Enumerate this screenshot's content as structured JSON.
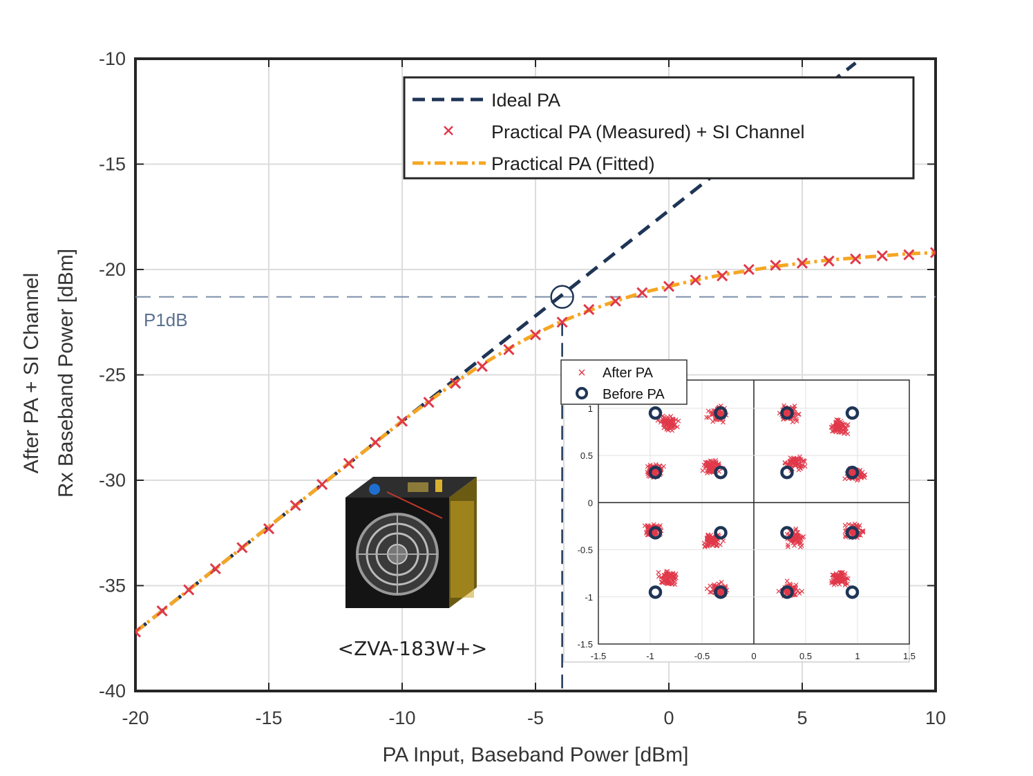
{
  "chart_data": [
    {
      "type": "line",
      "xlabel": "PA Input, Baseband Power [dBm]",
      "ylabel": [
        "After PA + SI Channel",
        "Rx Baseband Power [dBm]"
      ],
      "xlim": [
        -20,
        10
      ],
      "ylim": [
        -40,
        -10
      ],
      "xticks": [
        -20,
        -15,
        -10,
        -5,
        0,
        5,
        10
      ],
      "yticks": [
        -10,
        -15,
        -20,
        -25,
        -30,
        -35,
        -40
      ],
      "grid": true,
      "legend_position": "top-right",
      "series": [
        {
          "name": "Ideal PA",
          "style": "dashed",
          "color": "#1f3556",
          "x": [
            -20,
            7
          ],
          "y": [
            -37.2,
            -10.2
          ]
        },
        {
          "name": "Practical PA (Measured) + SI Channel",
          "style": "markers-x",
          "color": "#e0394a",
          "x": [
            -20,
            -19,
            -18,
            -17,
            -16,
            -15,
            -14,
            -13,
            -12,
            -11,
            -10,
            -9,
            -8,
            -7,
            -6,
            -5,
            -4,
            -3,
            -2,
            -1,
            0,
            1,
            2,
            3,
            4,
            5,
            6,
            7,
            8,
            9,
            10
          ],
          "y": [
            -37.2,
            -36.2,
            -35.2,
            -34.2,
            -33.2,
            -32.3,
            -31.2,
            -30.2,
            -29.2,
            -28.2,
            -27.2,
            -26.3,
            -25.4,
            -24.6,
            -23.8,
            -23.1,
            -22.5,
            -21.9,
            -21.5,
            -21.1,
            -20.8,
            -20.5,
            -20.3,
            -20.0,
            -19.8,
            -19.7,
            -19.6,
            -19.5,
            -19.35,
            -19.3,
            -19.2
          ]
        },
        {
          "name": "Practical PA (Fitted)",
          "style": "dashdot",
          "color": "#f5a623",
          "x": [
            -20,
            -19,
            -18,
            -17,
            -16,
            -15,
            -14,
            -13,
            -12,
            -11,
            -10,
            -9,
            -8,
            -7,
            -6,
            -5,
            -4,
            -3,
            -2,
            -1,
            0,
            1,
            2,
            3,
            4,
            5,
            6,
            7,
            8,
            9,
            10
          ],
          "y": [
            -37.2,
            -36.2,
            -35.2,
            -34.2,
            -33.2,
            -32.2,
            -31.2,
            -30.2,
            -29.2,
            -28.2,
            -27.2,
            -26.25,
            -25.35,
            -24.5,
            -23.75,
            -23.05,
            -22.45,
            -21.95,
            -21.5,
            -21.1,
            -20.8,
            -20.5,
            -20.25,
            -20.05,
            -19.85,
            -19.7,
            -19.55,
            -19.45,
            -19.35,
            -19.25,
            -19.2
          ]
        }
      ],
      "annotations": {
        "p1db_label": "P1dB",
        "p1db_x": -4.0,
        "p1db_y": -21.3
      }
    },
    {
      "type": "scatter",
      "title": "",
      "xlim": [
        -1.5,
        1.5
      ],
      "ylim": [
        -1.5,
        1.3
      ],
      "xticks": [
        -1.5,
        -1,
        -0.5,
        0,
        0.5,
        1,
        1.5
      ],
      "yticks": [
        1,
        0.5,
        0,
        -0.5,
        -1,
        -1.5
      ],
      "grid": true,
      "legend_position": "top-left",
      "series": [
        {
          "name": "After PA",
          "marker": "x",
          "color": "#e0394a",
          "clusters": [
            {
              "x": -0.82,
              "y": 0.84
            },
            {
              "x": -0.35,
              "y": 0.94
            },
            {
              "x": 0.35,
              "y": 0.94
            },
            {
              "x": 0.82,
              "y": 0.8
            },
            {
              "x": -0.97,
              "y": 0.33
            },
            {
              "x": -0.4,
              "y": 0.38
            },
            {
              "x": 0.4,
              "y": 0.42
            },
            {
              "x": 0.98,
              "y": 0.3
            },
            {
              "x": -0.97,
              "y": -0.3
            },
            {
              "x": -0.4,
              "y": -0.4
            },
            {
              "x": 0.4,
              "y": -0.38
            },
            {
              "x": 0.97,
              "y": -0.3
            },
            {
              "x": -0.82,
              "y": -0.8
            },
            {
              "x": -0.35,
              "y": -0.93
            },
            {
              "x": 0.35,
              "y": -0.93
            },
            {
              "x": 0.82,
              "y": -0.8
            }
          ]
        },
        {
          "name": "Before PA",
          "marker": "o",
          "color": "#1f3556",
          "x": [
            -0.95,
            -0.32,
            0.32,
            0.95,
            -0.95,
            -0.32,
            0.32,
            0.95,
            -0.95,
            -0.32,
            0.32,
            0.95,
            -0.95,
            -0.32,
            0.32,
            0.95
          ],
          "y": [
            0.95,
            0.95,
            0.95,
            0.95,
            0.32,
            0.32,
            0.32,
            0.32,
            -0.32,
            -0.32,
            -0.32,
            -0.32,
            -0.95,
            -0.95,
            -0.95,
            -0.95
          ]
        }
      ]
    }
  ],
  "device_caption": "<ZVA-183W+>"
}
